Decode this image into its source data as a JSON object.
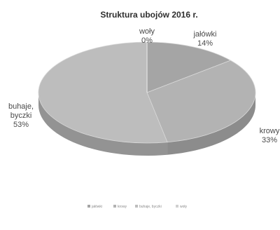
{
  "chart_data": {
    "type": "pie",
    "title": "Struktura ubojów  2016 r.",
    "slices": [
      {
        "label": "jałówki",
        "value": 14,
        "display": "14%",
        "label_lines": [
          "jałówki",
          "14%"
        ],
        "color": "#a5a5a5"
      },
      {
        "label": "krowy",
        "value": 33,
        "display": "33%",
        "label_lines": [
          "krowy",
          "33%"
        ],
        "color": "#b3b3b3"
      },
      {
        "label": "buhaje, byczki",
        "value": 53,
        "display": "53%",
        "label_lines": [
          "buhaje,",
          "byczki",
          "53%"
        ],
        "color": "#bdbdbd"
      },
      {
        "label": "woły",
        "value": 0,
        "display": "0%",
        "label_lines": [
          "woły",
          "0%"
        ],
        "color": "#d0d0d0"
      }
    ],
    "legend": {
      "placement": "bottom",
      "entries": [
        "jałówki",
        "krowy",
        "buhaje, byczki",
        "woły"
      ]
    },
    "style": "3d"
  }
}
